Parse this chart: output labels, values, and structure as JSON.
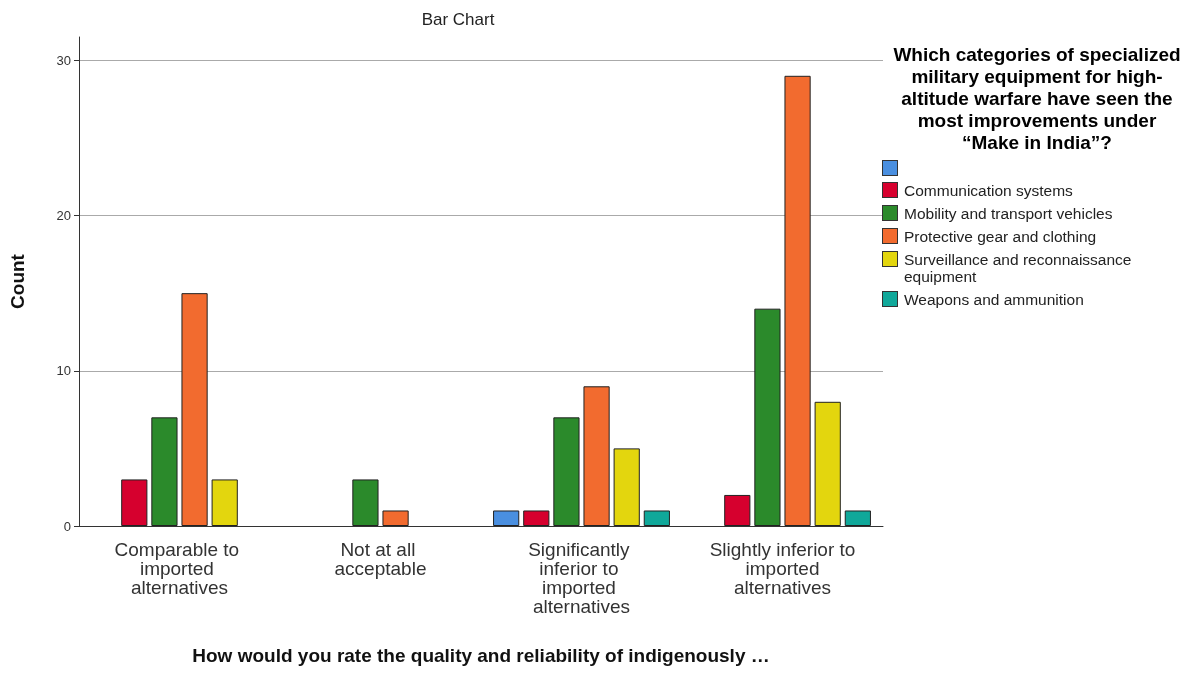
{
  "chart_data": {
    "type": "bar",
    "title": "Bar Chart",
    "xlabel": "How would you rate the quality and reliability of indigenously …",
    "ylabel": "Count",
    "legend_title": "Which categories of specialized military equipment for high-altitude warfare have seen the most improvements under “Make in India”?",
    "categories": [
      "Comparable to imported alternatives",
      "Not at all acceptable",
      "Significantly inferior to imported alternatives",
      "Slightly inferior to imported alternatives"
    ],
    "series": [
      {
        "color": "#4a8fe0",
        "values": [
          null,
          null,
          1,
          null
        ]
      },
      {
        "name": "Communication systems",
        "color": "#d6002e",
        "values": [
          3,
          null,
          1,
          2
        ]
      },
      {
        "name": "Mobility and transport vehicles",
        "color": "#2b8a2b",
        "values": [
          7,
          3,
          7,
          14
        ]
      },
      {
        "name": "Protective gear and clothing",
        "color": "#f26b2f",
        "values": [
          15,
          1,
          9,
          29
        ]
      },
      {
        "name": "Surveillance and reconnaissance equipment",
        "color": "#e3d60e",
        "values": [
          3,
          null,
          5,
          8
        ]
      },
      {
        "name": "Weapons and ammunition",
        "color": "#10a89a",
        "values": [
          null,
          null,
          1,
          1
        ]
      }
    ],
    "ylim": [
      0,
      31.5
    ],
    "yticks": [
      0,
      10,
      20,
      30
    ],
    "grid": "y",
    "legend": "right"
  }
}
